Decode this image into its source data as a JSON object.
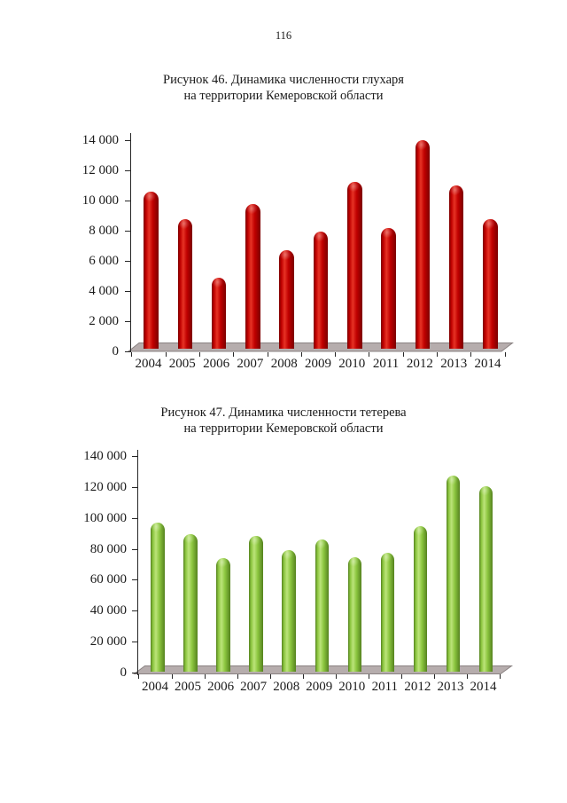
{
  "page": {
    "number": "116",
    "background_color": "#ffffff",
    "text_color": "#1a1a1a"
  },
  "figures": [
    {
      "caption_line1": "Рисунок 46. Динамика численности глухаря",
      "caption_line2": "на территории Кемеровской области"
    },
    {
      "caption_line1": "Рисунок 47. Динамика численности тетерева",
      "caption_line2": "на территории Кемеровской области"
    }
  ],
  "chart_data": [
    {
      "type": "bar",
      "style": "3d-cylinder-columns",
      "title": "Рисунок 46. Динамика численности глухаря на территории Кемеровской области",
      "categories": [
        "2004",
        "2005",
        "2006",
        "2007",
        "2008",
        "2009",
        "2010",
        "2011",
        "2012",
        "2013",
        "2014"
      ],
      "values": [
        10300,
        8450,
        4600,
        9500,
        6450,
        7650,
        10950,
        7900,
        13700,
        10700,
        8500
      ],
      "xlabel": "",
      "ylabel": "",
      "ylim": [
        0,
        14000
      ],
      "ytick_step": 2000,
      "ytick_labels": [
        "0",
        "2 000",
        "4 000",
        "6 000",
        "8 000",
        "10 000",
        "12 000",
        "14 000"
      ],
      "grid": false,
      "legend": "none",
      "bar_color": "#c00000",
      "bar_color_highlight": "#e63325",
      "bar_color_edge": "#7c0000",
      "floor_color": "#b6adad",
      "floor_border_color": "#8a8282",
      "axis_color": "#262626"
    },
    {
      "type": "bar",
      "style": "3d-cylinder-columns",
      "title": "Рисунок 47. Динамика численности тетерева на территории Кемеровской области",
      "categories": [
        "2004",
        "2005",
        "2006",
        "2007",
        "2008",
        "2009",
        "2010",
        "2011",
        "2012",
        "2013",
        "2014"
      ],
      "values": [
        95500,
        88000,
        72500,
        87000,
        78000,
        85000,
        73500,
        76000,
        93500,
        126000,
        119500
      ],
      "xlabel": "",
      "ylabel": "",
      "ylim": [
        0,
        140000
      ],
      "ytick_step": 20000,
      "ytick_labels": [
        "0",
        "20 000",
        "40 000",
        "60 000",
        "80 000",
        "100 000",
        "120 000",
        "140 000"
      ],
      "grid": false,
      "legend": "none",
      "bar_color": "#8cc63f",
      "bar_color_highlight": "#bce47a",
      "bar_color_edge": "#55821f",
      "floor_color": "#b6adad",
      "floor_border_color": "#8a8282",
      "axis_color": "#262626"
    }
  ]
}
